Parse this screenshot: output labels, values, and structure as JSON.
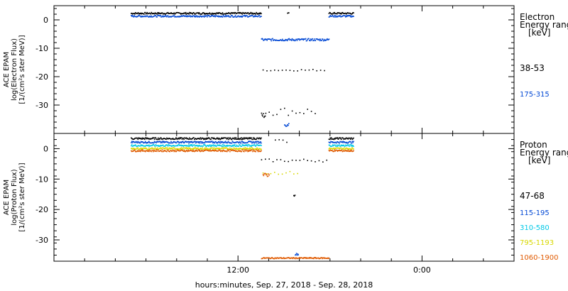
{
  "footer": {
    "xlabel": "hours:minutes, Sep. 27, 2018 - Sep. 28, 2018"
  },
  "x_ticks": [
    "12:00",
    "0:00"
  ],
  "chart_data": [
    {
      "type": "scatter",
      "name": "electron",
      "ylabel": [
        "ACE EPAM",
        "log(Electron Flux)",
        "[1/(cm²s ster MeV)]"
      ],
      "ylim": [
        -40,
        5
      ],
      "yticks": [
        0,
        -10,
        -20,
        -30
      ],
      "xlim_hours": [
        0,
        30
      ],
      "legend": {
        "title": [
          "Electron",
          "Energy ranges",
          "[keV]"
        ],
        "placement": "right"
      },
      "series": [
        {
          "name": "38-53",
          "color": "#000000",
          "segments": [
            {
              "x": [
                5,
                13.5
              ],
              "y": 2.5,
              "jitter": 0.3
            },
            {
              "x": [
                13.5,
                13.8
              ],
              "y": -33.5,
              "jitter": 1
            },
            {
              "x": [
                13.6,
                17.8
              ],
              "y": -17.5,
              "jitter": 0.3,
              "sparse": true
            },
            {
              "x": [
                14.0,
                17.0
              ],
              "y": -32,
              "jitter": 1.5,
              "sparse": true
            },
            {
              "x": [
                15.2,
                15.3
              ],
              "y": 2.5,
              "jitter": 0.2
            },
            {
              "x": [
                17.9,
                19.5
              ],
              "y": 2.5,
              "jitter": 0.3
            }
          ]
        },
        {
          "name": "175-315",
          "color": "#0047d4",
          "segments": [
            {
              "x": [
                5,
                13.5
              ],
              "y": 1.5,
              "jitter": 0.3
            },
            {
              "x": [
                13.5,
                17.9
              ],
              "y": -6.8,
              "jitter": 0.4
            },
            {
              "x": [
                15.0,
                15.3
              ],
              "y": -36.5,
              "jitter": 1
            },
            {
              "x": [
                17.9,
                19.5
              ],
              "y": 1.5,
              "jitter": 0.3
            }
          ]
        }
      ]
    },
    {
      "type": "scatter",
      "name": "proton",
      "ylabel": [
        "ACE EPAM",
        "log(Proton Flux)",
        "[1/(cm²s ster MeV)]"
      ],
      "ylim": [
        -37,
        5
      ],
      "yticks": [
        0,
        -10,
        -20,
        -30
      ],
      "xlim_hours": [
        0,
        30
      ],
      "legend": {
        "title": [
          "Proton",
          "Energy ranges",
          "[keV]"
        ],
        "placement": "right"
      },
      "series": [
        {
          "name": "47-68",
          "color": "#000000",
          "segments": [
            {
              "x": [
                5,
                13.5
              ],
              "y": 3.5,
              "jitter": 0.3
            },
            {
              "x": [
                13.5,
                17.9
              ],
              "y": -3.7,
              "jitter": 0.5,
              "sparse": true
            },
            {
              "x": [
                14.4,
                15.2
              ],
              "y": 2.7,
              "jitter": 0.5,
              "sparse": true
            },
            {
              "x": [
                15.6,
                15.7
              ],
              "y": -15.2,
              "jitter": 0.3
            },
            {
              "x": [
                17.9,
                19.5
              ],
              "y": 3.5,
              "jitter": 0.3
            }
          ]
        },
        {
          "name": "115-195",
          "color": "#0047d4",
          "segments": [
            {
              "x": [
                5,
                13.5
              ],
              "y": 2.3,
              "jitter": 0.3
            },
            {
              "x": [
                15.7,
                15.9
              ],
              "y": -34.5,
              "jitter": 0.3
            },
            {
              "x": [
                17.9,
                19.5
              ],
              "y": 2.3,
              "jitter": 0.3
            }
          ]
        },
        {
          "name": "310-580",
          "color": "#00c8e6",
          "segments": [
            {
              "x": [
                5,
                13.5
              ],
              "y": 1.2,
              "jitter": 0.3
            },
            {
              "x": [
                17.9,
                19.5
              ],
              "y": 1.2,
              "jitter": 0.3
            }
          ]
        },
        {
          "name": "795-1193",
          "color": "#d8d800",
          "segments": [
            {
              "x": [
                5,
                13.5
              ],
              "y": 0.2,
              "jitter": 0.3
            },
            {
              "x": [
                13.6,
                16.0
              ],
              "y": -7.8,
              "jitter": 0.5,
              "sparse": true
            },
            {
              "x": [
                17.9,
                19.5
              ],
              "y": 0.2,
              "jitter": 0.3
            }
          ]
        },
        {
          "name": "1060-1900",
          "color": "#e05a00",
          "segments": [
            {
              "x": [
                5,
                13.5
              ],
              "y": -0.5,
              "jitter": 0.3
            },
            {
              "x": [
                13.6,
                14.0
              ],
              "y": -8.5,
              "jitter": 0.6
            },
            {
              "x": [
                13.5,
                17.9
              ],
              "y": -35.8,
              "jitter": 0.2
            },
            {
              "x": [
                17.9,
                19.5
              ],
              "y": -0.5,
              "jitter": 0.3
            }
          ]
        }
      ]
    }
  ]
}
